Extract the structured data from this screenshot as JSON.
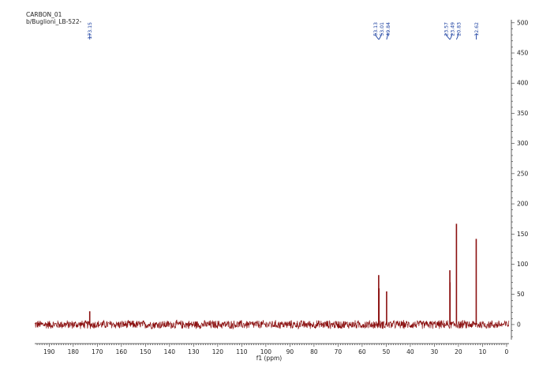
{
  "header": {
    "line1": "CARBON_01",
    "line2": "b/Buglioni_LB-522-"
  },
  "chart_data": {
    "type": "line",
    "title": "",
    "xlabel": "f1 (ppm)",
    "ylabel": "",
    "xlim": [
      196,
      -1
    ],
    "ylim": [
      -25,
      505
    ],
    "x_ticks": [
      190,
      180,
      170,
      160,
      150,
      140,
      130,
      120,
      110,
      100,
      90,
      80,
      70,
      60,
      50,
      40,
      30,
      20,
      10,
      0
    ],
    "y_ticks": [
      0,
      50,
      100,
      150,
      200,
      250,
      300,
      350,
      400,
      450,
      500
    ],
    "grid": false,
    "baseline_noise_amplitude": 8,
    "peaks": [
      {
        "ppm": 173.15,
        "height": 22
      },
      {
        "ppm": 53.13,
        "height": 82
      },
      {
        "ppm": 53.01,
        "height": 60
      },
      {
        "ppm": 49.84,
        "height": 55
      },
      {
        "ppm": 23.57,
        "height": 90
      },
      {
        "ppm": 23.49,
        "height": 70
      },
      {
        "ppm": 20.83,
        "height": 167
      },
      {
        "ppm": 12.62,
        "height": 142
      }
    ],
    "peak_labels": [
      {
        "ppm": 173.15,
        "label": "173.15"
      },
      {
        "ppm": 53.13,
        "label": "53.13"
      },
      {
        "ppm": 53.01,
        "label": "53.01"
      },
      {
        "ppm": 49.84,
        "label": "49.84"
      },
      {
        "ppm": 23.57,
        "label": "23.57"
      },
      {
        "ppm": 23.49,
        "label": "23.49"
      },
      {
        "ppm": 20.83,
        "label": "20.83"
      },
      {
        "ppm": 12.62,
        "label": "12.62"
      }
    ],
    "colors": {
      "spectrum": "#8b1010",
      "labels": "#1a3fa0",
      "axis": "#333333"
    }
  }
}
